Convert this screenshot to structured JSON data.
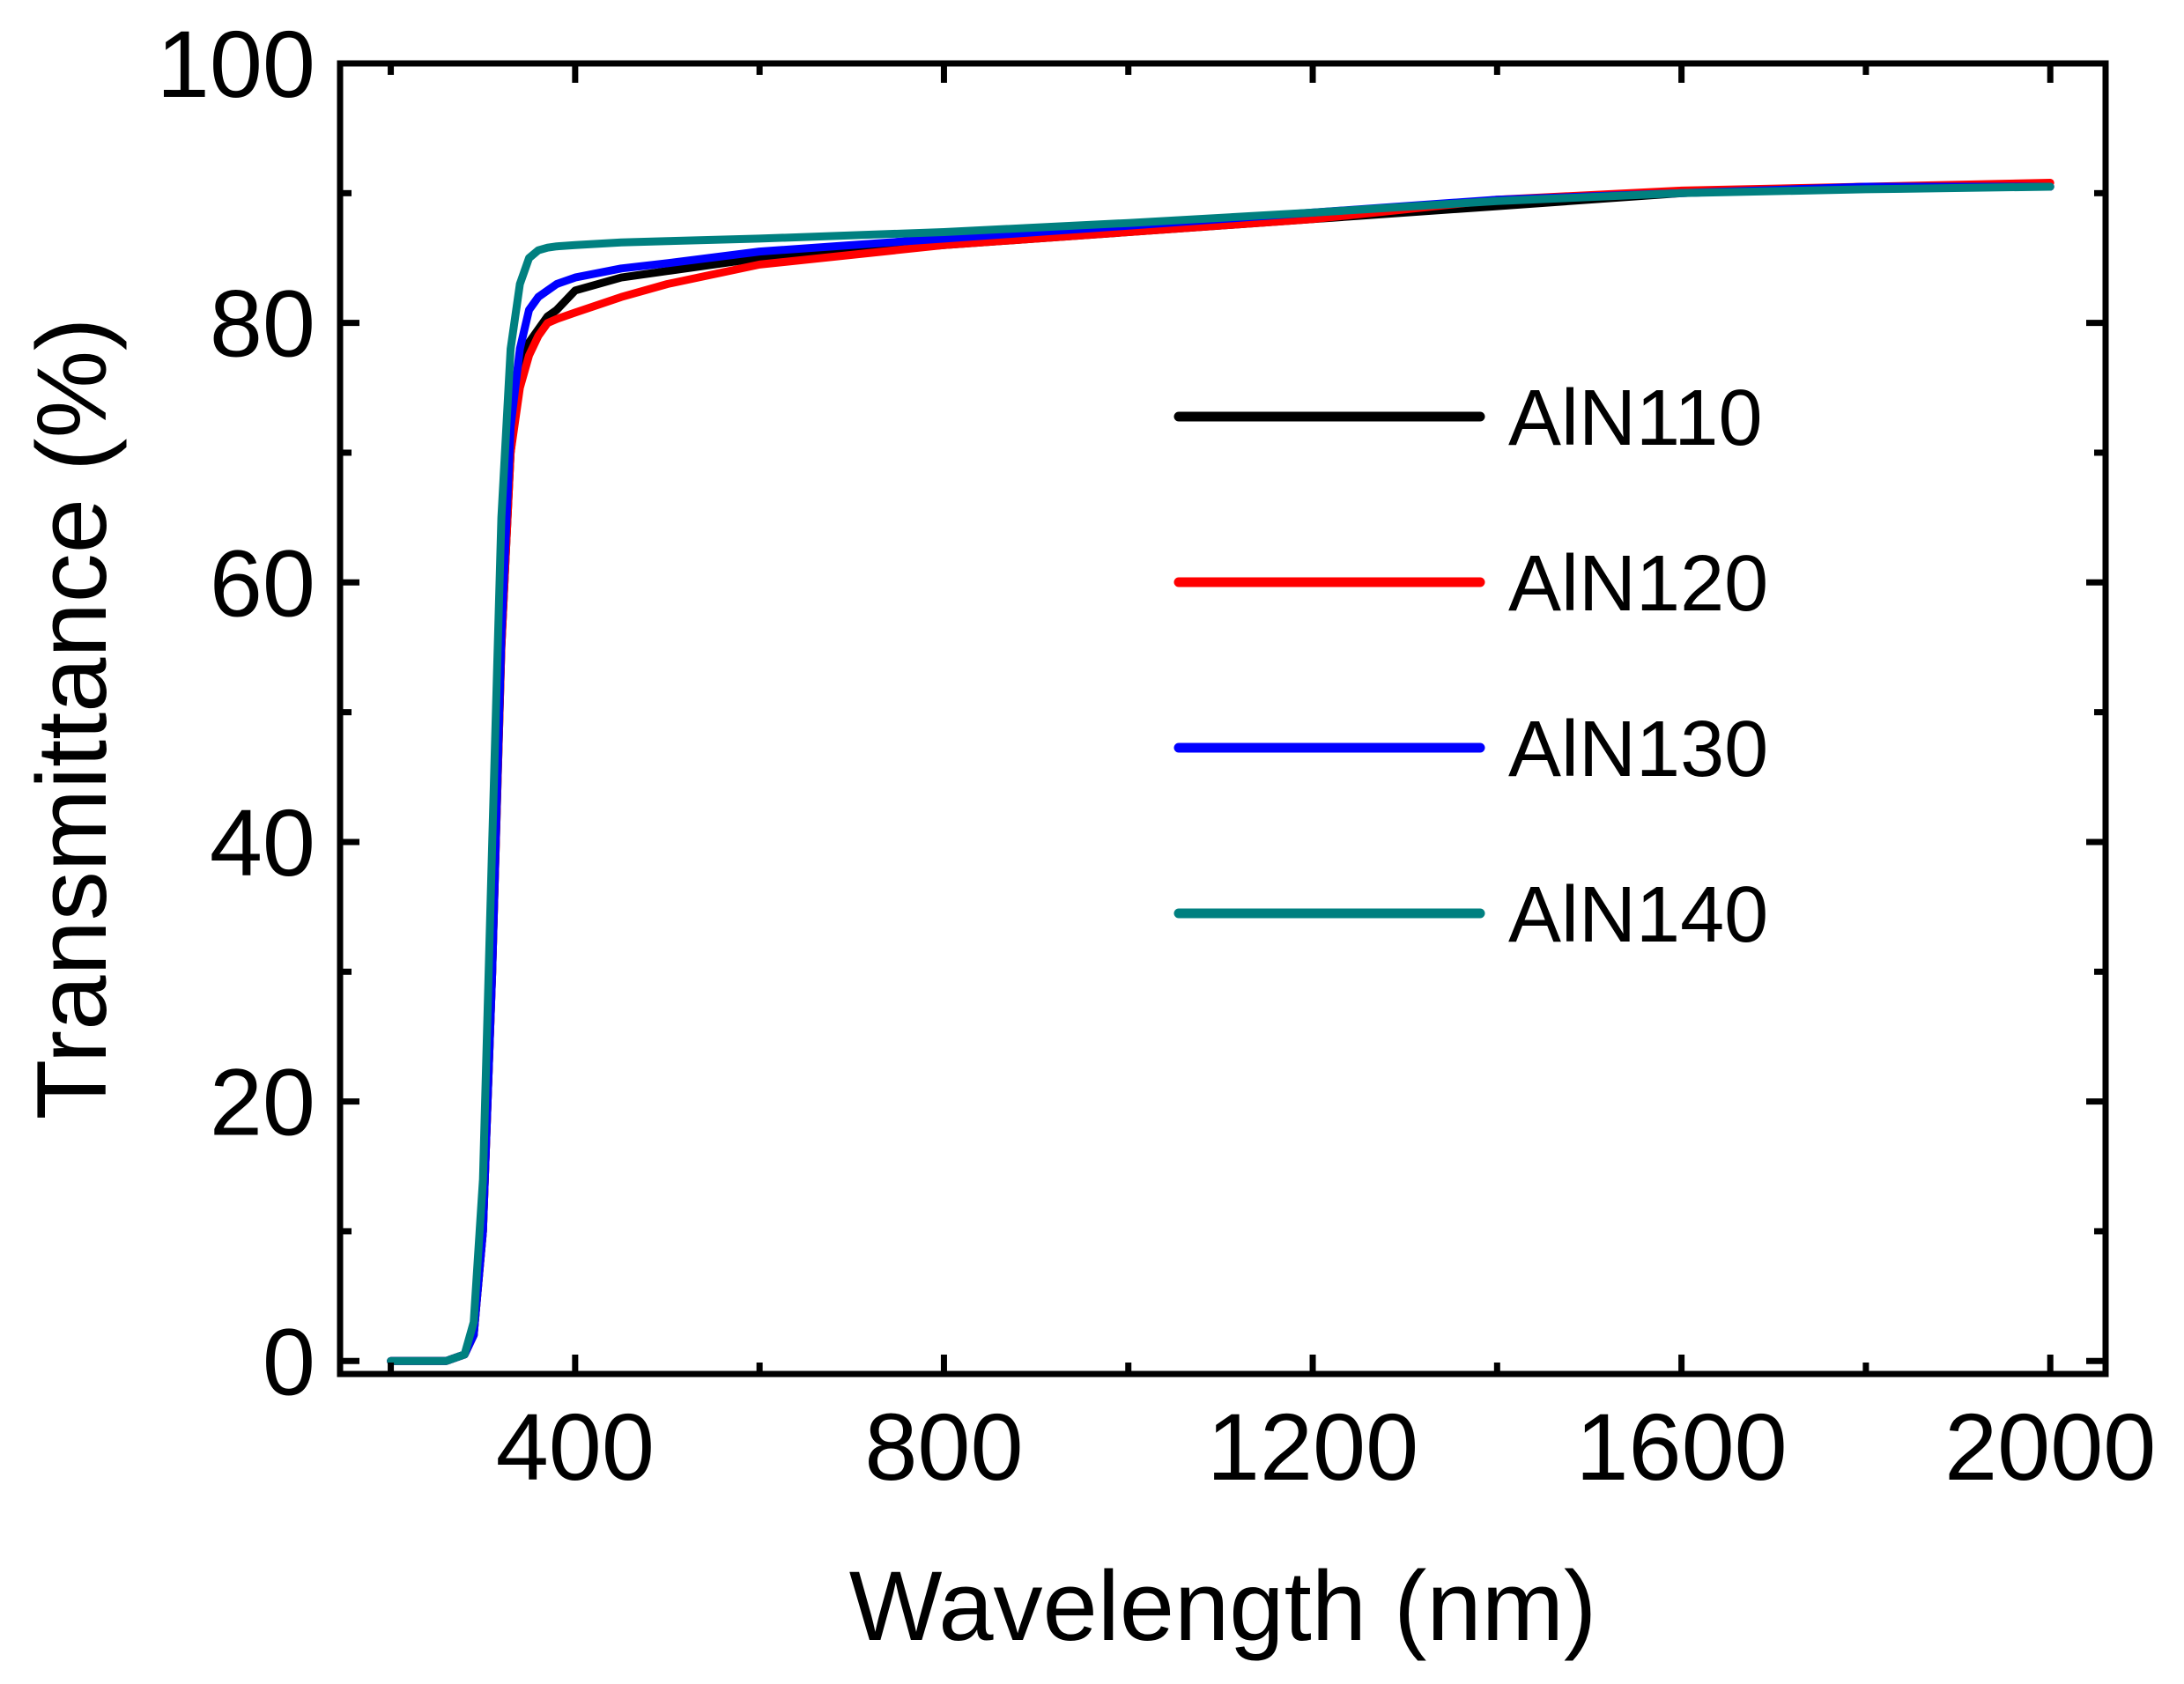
{
  "chart_data": {
    "type": "line",
    "title": "",
    "xlabel": "Wavelength (nm)",
    "ylabel": "Transmittance (%)",
    "xlim": [
      145,
      2060
    ],
    "ylim": [
      -1,
      100
    ],
    "x_ticks": [
      400,
      800,
      1200,
      1600,
      2000
    ],
    "x_minor_ticks": [
      200,
      600,
      1000,
      1400,
      1800
    ],
    "y_ticks": [
      0,
      20,
      40,
      60,
      80,
      100
    ],
    "y_minor_ticks": [
      10,
      30,
      50,
      70,
      90
    ],
    "legend_position": "right-center",
    "grid": false,
    "series": [
      {
        "name": "AlN110",
        "color": "#000000",
        "x": [
          200,
          260,
          280,
          290,
          300,
          310,
          320,
          330,
          340,
          350,
          360,
          370,
          380,
          400,
          450,
          500,
          600,
          800,
          1000,
          1200,
          1400,
          1600,
          1800,
          2000
        ],
        "y": [
          0,
          0,
          0.5,
          2,
          10,
          30,
          55,
          70,
          76,
          78.5,
          79.5,
          80.5,
          81,
          82.5,
          83.5,
          84,
          85,
          86,
          87,
          88,
          89,
          90,
          90.5,
          90.5
        ]
      },
      {
        "name": "AlN120",
        "color": "#ff0000",
        "x": [
          200,
          260,
          280,
          290,
          300,
          310,
          320,
          330,
          340,
          350,
          360,
          370,
          380,
          400,
          450,
          500,
          600,
          800,
          1000,
          1200,
          1400,
          1600,
          1800,
          2000
        ],
        "y": [
          0,
          0,
          0.5,
          2,
          10,
          30,
          55,
          70,
          75,
          77.5,
          79,
          80,
          80.3,
          80.8,
          82,
          83,
          84.5,
          86,
          87,
          88,
          89.5,
          90.2,
          90.5,
          90.8
        ]
      },
      {
        "name": "AlN130",
        "color": "#0000ff",
        "x": [
          200,
          260,
          280,
          290,
          300,
          310,
          320,
          330,
          340,
          350,
          360,
          370,
          380,
          400,
          450,
          500,
          600,
          800,
          1000,
          1200,
          1400,
          1600,
          1800,
          2000
        ],
        "y": [
          0,
          0,
          0.5,
          2,
          10,
          30,
          56,
          72,
          78,
          81,
          82,
          82.5,
          83,
          83.5,
          84.2,
          84.6,
          85.5,
          86.5,
          87.5,
          88.5,
          89.5,
          90,
          90.5,
          90.5
        ]
      },
      {
        "name": "AlN140",
        "color": "#008080",
        "x": [
          200,
          260,
          280,
          290,
          300,
          310,
          320,
          330,
          340,
          350,
          360,
          370,
          380,
          400,
          450,
          500,
          600,
          800,
          1000,
          1200,
          1400,
          1600,
          1800,
          2000
        ],
        "y": [
          0,
          0,
          0.5,
          3,
          14,
          40,
          65,
          78,
          83,
          85,
          85.6,
          85.8,
          85.9,
          86,
          86.2,
          86.3,
          86.5,
          87,
          87.7,
          88.5,
          89.4,
          90,
          90.3,
          90.5
        ]
      }
    ]
  }
}
